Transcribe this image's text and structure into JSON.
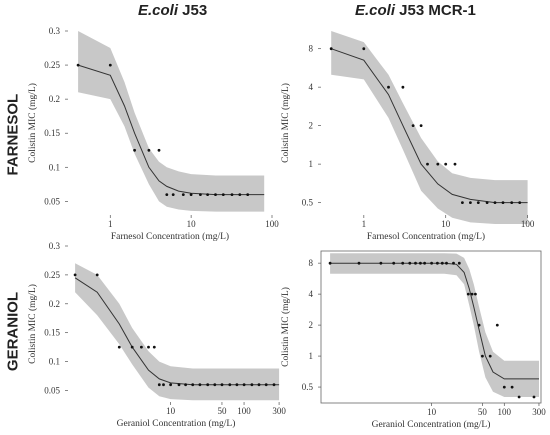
{
  "column_titles": [
    {
      "italic": "E.coli",
      "rest": " J53"
    },
    {
      "italic": "E.coli",
      "rest": " J53 MCR-1"
    }
  ],
  "row_titles": [
    "FARNESOL",
    "GERANIOL"
  ],
  "chart_data": [
    {
      "type": "line",
      "xlabel": "Farnesol Concentration (mg/L)",
      "ylabel": "Colistin MIC (mg/L)",
      "xscale": "log",
      "xlim": [
        0.3,
        100
      ],
      "xticks": [
        1,
        10,
        100
      ],
      "ylim": [
        0.03,
        0.3
      ],
      "yticks": [
        0.05,
        0.1,
        0.15,
        0.2,
        0.25,
        0.3
      ],
      "ytick_labels": [
        "0.05",
        "0.1",
        "0.15",
        "0.2",
        "0.25",
        "0.3"
      ],
      "points": {
        "x": [
          0.4,
          1,
          2,
          3,
          4,
          5,
          6,
          8,
          10,
          13,
          16,
          20,
          25,
          32,
          40,
          50
        ],
        "y": [
          0.25,
          0.25,
          0.125,
          0.125,
          0.125,
          0.06,
          0.06,
          0.06,
          0.06,
          0.06,
          0.06,
          0.06,
          0.06,
          0.06,
          0.06,
          0.06
        ]
      },
      "fit": {
        "x": [
          0.4,
          1,
          1.5,
          2,
          3,
          4,
          5,
          7,
          10,
          20,
          50,
          80
        ],
        "y": [
          0.25,
          0.235,
          0.19,
          0.15,
          0.1,
          0.08,
          0.072,
          0.065,
          0.062,
          0.06,
          0.06,
          0.06
        ],
        "lower": [
          0.21,
          0.2,
          0.16,
          0.12,
          0.075,
          0.05,
          0.042,
          0.038,
          0.036,
          0.035,
          0.035,
          0.035
        ],
        "upper": [
          0.3,
          0.275,
          0.225,
          0.18,
          0.128,
          0.108,
          0.1,
          0.094,
          0.09,
          0.088,
          0.088,
          0.088
        ]
      }
    },
    {
      "type": "line",
      "xlabel": "Farnesol Concentration (mg/L)",
      "ylabel": "Colistin MIC (mg/L)",
      "xscale": "log",
      "xlim": [
        0.3,
        110
      ],
      "xticks": [
        1,
        10,
        100
      ],
      "yscale": "log2",
      "ylim": [
        0.4,
        11
      ],
      "yticks": [
        0.5,
        1,
        2,
        4,
        8
      ],
      "ytick_labels": [
        "0.5",
        "1",
        "2",
        "4",
        "8"
      ],
      "points": {
        "x": [
          0.4,
          1,
          2,
          3,
          4,
          5,
          6,
          8,
          10,
          13,
          16,
          20,
          25,
          32,
          40,
          50,
          64,
          80
        ],
        "y": [
          8,
          8,
          4,
          4,
          2,
          2,
          1,
          1,
          1,
          1,
          0.5,
          0.5,
          0.5,
          0.5,
          0.5,
          0.5,
          0.5,
          0.5
        ]
      },
      "fit": {
        "x": [
          0.4,
          1,
          2,
          3,
          5,
          8,
          12,
          20,
          40,
          100
        ],
        "y": [
          8,
          6.5,
          3.5,
          2,
          1,
          0.7,
          0.58,
          0.53,
          0.5,
          0.5
        ],
        "lower": [
          5,
          4.6,
          2.3,
          1.3,
          0.62,
          0.45,
          0.38,
          0.35,
          0.34,
          0.34
        ],
        "upper": [
          11,
          9,
          5,
          3,
          1.6,
          1.05,
          0.85,
          0.78,
          0.75,
          0.75
        ]
      }
    },
    {
      "type": "line",
      "xlabel": "Geraniol Concentration (mg/L)",
      "ylabel": "Colistin MIC (mg/L)",
      "xscale": "log",
      "xlim": [
        0.4,
        350
      ],
      "xticks": [
        10,
        50,
        100,
        300
      ],
      "xtick_labels": [
        "10",
        "50",
        "100",
        "300"
      ],
      "ylim": [
        0.03,
        0.3
      ],
      "yticks": [
        0.05,
        0.1,
        0.15,
        0.2,
        0.25,
        0.3
      ],
      "ytick_labels": [
        "0.05",
        "0.1",
        "0.15",
        "0.2",
        "0.25",
        "0.3"
      ],
      "points": {
        "x": [
          0.5,
          1,
          2,
          3,
          4,
          5,
          6,
          7,
          8,
          10,
          13,
          16,
          20,
          25,
          32,
          40,
          50,
          64,
          80,
          100,
          128,
          160,
          200,
          256
        ],
        "y": [
          0.25,
          0.25,
          0.125,
          0.125,
          0.125,
          0.125,
          0.125,
          0.06,
          0.06,
          0.06,
          0.06,
          0.06,
          0.06,
          0.06,
          0.06,
          0.06,
          0.06,
          0.06,
          0.06,
          0.06,
          0.06,
          0.06,
          0.06,
          0.06
        ]
      },
      "fit": {
        "x": [
          0.5,
          1,
          2,
          3,
          5,
          7,
          10,
          20,
          50,
          100,
          300
        ],
        "y": [
          0.245,
          0.22,
          0.165,
          0.125,
          0.085,
          0.07,
          0.063,
          0.06,
          0.06,
          0.06,
          0.06
        ],
        "lower": [
          0.22,
          0.18,
          0.13,
          0.095,
          0.055,
          0.04,
          0.035,
          0.033,
          0.033,
          0.033,
          0.033
        ],
        "upper": [
          0.27,
          0.25,
          0.2,
          0.158,
          0.118,
          0.1,
          0.092,
          0.088,
          0.088,
          0.088,
          0.088
        ]
      }
    },
    {
      "type": "line",
      "xlabel": "Geraniol Concentration (mg/L)",
      "ylabel": "Colistin MIC (mg/L)",
      "xscale": "log",
      "xlim": [
        0.3,
        320
      ],
      "xticks": [
        10,
        50,
        100,
        300
      ],
      "xtick_labels": [
        "10",
        "50",
        "100",
        "300"
      ],
      "yscale": "log2",
      "ylim": [
        0.35,
        10.5
      ],
      "yticks": [
        0.5,
        1,
        2,
        4,
        8
      ],
      "ytick_labels": [
        "0.5",
        "1",
        "2",
        "4",
        "8"
      ],
      "points": {
        "x": [
          0.4,
          1,
          2,
          3,
          4,
          5,
          6,
          7,
          8,
          10,
          12,
          14,
          16,
          20,
          24,
          32,
          36,
          40,
          45,
          50,
          64,
          80,
          100,
          128,
          160,
          256
        ],
        "y": [
          8,
          8,
          8,
          8,
          8,
          8,
          8,
          8,
          8,
          8,
          8,
          8,
          8,
          8,
          8,
          4,
          4,
          4,
          2,
          1,
          1,
          2,
          0.5,
          0.5,
          0.4,
          0.4
        ]
      },
      "fit": {
        "x": [
          0.4,
          5,
          15,
          22,
          28,
          33,
          38,
          45,
          55,
          70,
          100,
          300
        ],
        "y": [
          8,
          8,
          8,
          7.8,
          6.5,
          4.5,
          3,
          1.8,
          1,
          0.7,
          0.6,
          0.6
        ],
        "lower": [
          6.3,
          6.3,
          6.3,
          6.1,
          5,
          3.1,
          2,
          1.1,
          0.62,
          0.45,
          0.4,
          0.4
        ],
        "upper": [
          10,
          10,
          10,
          9.9,
          9,
          7,
          5,
          3,
          1.7,
          1.1,
          0.9,
          0.9
        ]
      }
    }
  ]
}
